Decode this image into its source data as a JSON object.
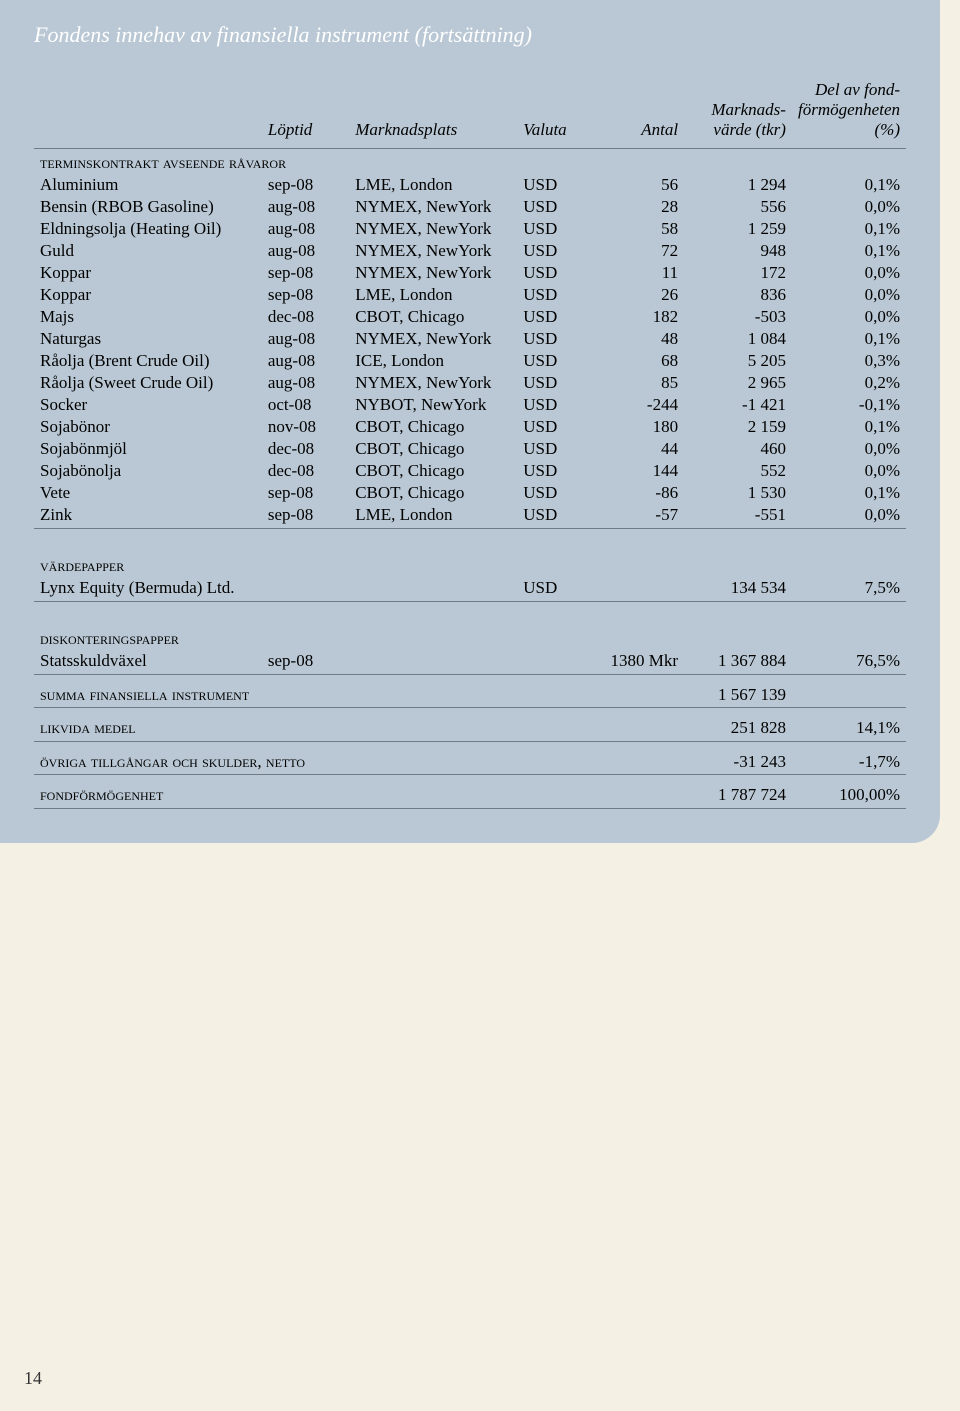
{
  "title": "Fondens innehav av finansiella instrument (fortsättning)",
  "headers": {
    "loptid": "Löptid",
    "marknadsplats": "Marknadsplats",
    "valuta": "Valuta",
    "antal": "Antal",
    "marknadsvarde": "Marknads-\nvärde (tkr)",
    "del": "Del av fond-\nförmögenheten\n(%)"
  },
  "sections": {
    "termins": {
      "label": "terminskontrakt avseende råvaror",
      "rows": [
        {
          "name": "Aluminium",
          "lop": "sep-08",
          "mp": "LME, London",
          "cur": "USD",
          "ant": "56",
          "mv": "1 294",
          "pct": "0,1%"
        },
        {
          "name": "Bensin (RBOB Gasoline)",
          "lop": "aug-08",
          "mp": "NYMEX, NewYork",
          "cur": "USD",
          "ant": "28",
          "mv": "556",
          "pct": "0,0%"
        },
        {
          "name": "Eldningsolja (Heating Oil)",
          "lop": "aug-08",
          "mp": "NYMEX, NewYork",
          "cur": "USD",
          "ant": "58",
          "mv": "1 259",
          "pct": "0,1%"
        },
        {
          "name": "Guld",
          "lop": "aug-08",
          "mp": "NYMEX, NewYork",
          "cur": "USD",
          "ant": "72",
          "mv": "948",
          "pct": "0,1%"
        },
        {
          "name": "Koppar",
          "lop": "sep-08",
          "mp": "NYMEX, NewYork",
          "cur": "USD",
          "ant": "11",
          "mv": "172",
          "pct": "0,0%"
        },
        {
          "name": "Koppar",
          "lop": "sep-08",
          "mp": "LME, London",
          "cur": "USD",
          "ant": "26",
          "mv": "836",
          "pct": "0,0%"
        },
        {
          "name": "Majs",
          "lop": "dec-08",
          "mp": "CBOT, Chicago",
          "cur": "USD",
          "ant": "182",
          "mv": "-503",
          "pct": "0,0%"
        },
        {
          "name": "Naturgas",
          "lop": "aug-08",
          "mp": "NYMEX, NewYork",
          "cur": "USD",
          "ant": "48",
          "mv": "1 084",
          "pct": "0,1%"
        },
        {
          "name": "Råolja (Brent Crude Oil)",
          "lop": "aug-08",
          "mp": "ICE, London",
          "cur": "USD",
          "ant": "68",
          "mv": "5 205",
          "pct": "0,3%"
        },
        {
          "name": "Råolja (Sweet Crude Oil)",
          "lop": "aug-08",
          "mp": "NYMEX, NewYork",
          "cur": "USD",
          "ant": "85",
          "mv": "2 965",
          "pct": "0,2%"
        },
        {
          "name": "Socker",
          "lop": "oct-08",
          "mp": "NYBOT, NewYork",
          "cur": "USD",
          "ant": "-244",
          "mv": "-1 421",
          "pct": "-0,1%"
        },
        {
          "name": "Sojabönor",
          "lop": "nov-08",
          "mp": "CBOT, Chicago",
          "cur": "USD",
          "ant": "180",
          "mv": "2 159",
          "pct": "0,1%"
        },
        {
          "name": "Sojabönmjöl",
          "lop": "dec-08",
          "mp": "CBOT, Chicago",
          "cur": "USD",
          "ant": "44",
          "mv": "460",
          "pct": "0,0%"
        },
        {
          "name": "Sojabönolja",
          "lop": "dec-08",
          "mp": "CBOT, Chicago",
          "cur": "USD",
          "ant": "144",
          "mv": "552",
          "pct": "0,0%"
        },
        {
          "name": "Vete",
          "lop": "sep-08",
          "mp": "CBOT, Chicago",
          "cur": "USD",
          "ant": "-86",
          "mv": "1 530",
          "pct": "0,1%"
        },
        {
          "name": "Zink",
          "lop": "sep-08",
          "mp": "LME, London",
          "cur": "USD",
          "ant": "-57",
          "mv": "-551",
          "pct": "0,0%"
        }
      ]
    },
    "vardepapper": {
      "label": "värdepapper",
      "rows": [
        {
          "name": "Lynx Equity (Bermuda) Ltd.",
          "lop": "",
          "mp": "",
          "cur": "USD",
          "ant": "",
          "mv": "134 534",
          "pct": "7,5%"
        }
      ]
    },
    "diskont": {
      "label": "diskonteringspapper",
      "rows": [
        {
          "name": "Statsskuldväxel",
          "lop": "sep-08",
          "mp": "",
          "cur": "",
          "ant": "1380 Mkr",
          "mv": "1 367 884",
          "pct": "76,5%"
        }
      ]
    },
    "summa": {
      "label": "summa finansiella instrument",
      "mv": "1 567 139",
      "pct": ""
    },
    "likvida": {
      "label": "likvida medel",
      "mv": "251 828",
      "pct": "14,1%"
    },
    "ovriga": {
      "label": "övriga tillgångar och skulder, netto",
      "mv": "-31 243",
      "pct": "-1,7%"
    },
    "fondform": {
      "label": "fondförmögenhet",
      "mv": "1 787 724",
      "pct": "100,00%"
    }
  },
  "page_number": "14",
  "colors": {
    "page_bg": "#f5f0e4",
    "panel_bg": "#b9c8d4",
    "title_color": "#ffffff",
    "rule_color": "#6e7a84",
    "text_color": "#000000"
  }
}
